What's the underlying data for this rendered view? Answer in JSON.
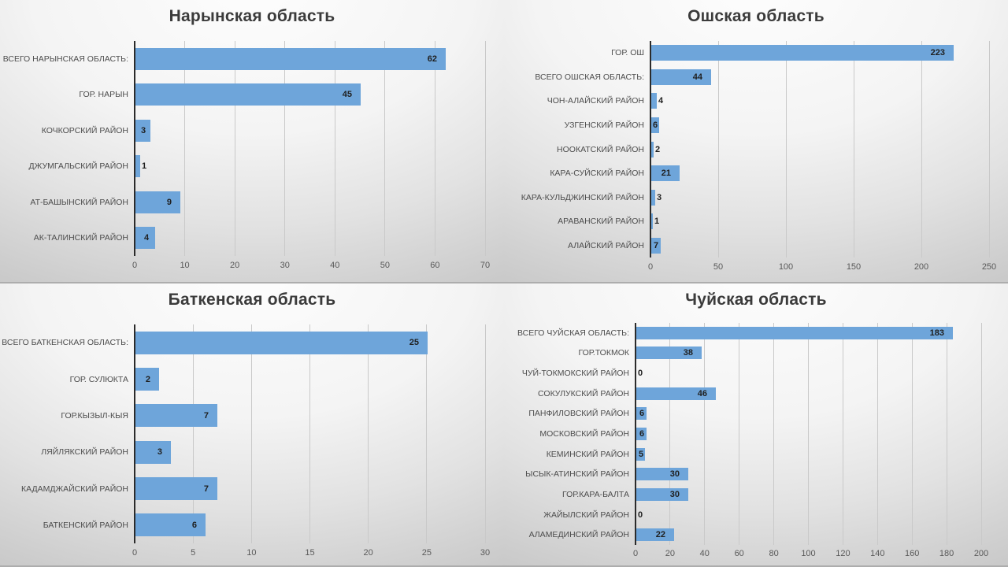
{
  "colors": {
    "bar": "#6EA5DA",
    "axis_line": "#2b2b2b",
    "gridline": "#c9c9c9",
    "title_text": "#3b3b3b",
    "category_text": "#4d4d4d",
    "tick_text": "#595959",
    "value_text": "#1f1f1f",
    "background_top": "#fdfdfd",
    "background_edge": "#bfbfbf"
  },
  "chart_data": [
    {
      "id": "naryn",
      "type": "bar",
      "orientation": "horizontal",
      "title": "Нарынская область",
      "categories": [
        "ВСЕГО НАРЫНСКАЯ ОБЛАСТЬ:",
        "ГОР. НАРЫН",
        "КОЧКОРСКИЙ РАЙОН",
        "ДЖУМГАЛЬСКИЙ РАЙОН",
        "АТ-БАШЫНСКИЙ РАЙОН",
        "АК-ТАЛИНСКИЙ РАЙОН"
      ],
      "values": [
        62,
        45,
        3,
        1,
        9,
        4
      ],
      "category_order": "top-to-bottom",
      "xlim": [
        0,
        70
      ],
      "xtick_step": 10,
      "xticks": [
        0,
        10,
        20,
        30,
        40,
        50,
        60,
        70
      ],
      "grid": true,
      "legend": "none",
      "data_labels": "inside-end"
    },
    {
      "id": "osh",
      "type": "bar",
      "orientation": "horizontal",
      "title": "Ошская область",
      "categories": [
        "ГОР. ОШ",
        "ВСЕГО ОШСКАЯ ОБЛАСТЬ:",
        "ЧОН-АЛАЙСКИЙ РАЙОН",
        "УЗГЕНСКИЙ РАЙОН",
        "НООКАТСКИЙ РАЙОН",
        "КАРА-СУЙСКИЙ РАЙОН",
        "КАРА-КУЛЬДЖИНСКИЙ РАЙОН",
        "АРАВАНСКИЙ РАЙОН",
        "АЛАЙСКИЙ РАЙОН"
      ],
      "values": [
        223,
        44,
        4,
        6,
        2,
        21,
        3,
        1,
        7
      ],
      "category_order": "top-to-bottom",
      "xlim": [
        0,
        250
      ],
      "xtick_step": 50,
      "xticks": [
        0,
        50,
        100,
        150,
        200,
        250
      ],
      "grid": true,
      "legend": "none",
      "data_labels": "inside-end"
    },
    {
      "id": "batken",
      "type": "bar",
      "orientation": "horizontal",
      "title": "Баткенская область",
      "categories": [
        "ВСЕГО БАТКЕНСКАЯ ОБЛАСТЬ:",
        "ГОР. СУЛЮКТА",
        "ГОР.КЫЗЫЛ-КЫЯ",
        "ЛЯЙЛЯКСКИЙ РАЙОН",
        "КАДАМДЖАЙСКИЙ РАЙОН",
        "БАТКЕНСКИЙ РАЙОН"
      ],
      "values": [
        25,
        2,
        7,
        3,
        7,
        6
      ],
      "category_order": "top-to-bottom",
      "xlim": [
        0,
        30
      ],
      "xtick_step": 5,
      "xticks": [
        0,
        5,
        10,
        15,
        20,
        25,
        30
      ],
      "grid": true,
      "legend": "none",
      "data_labels": "inside-end"
    },
    {
      "id": "chuy",
      "type": "bar",
      "orientation": "horizontal",
      "title": "Чуйская область",
      "categories": [
        "ВСЕГО ЧУЙСКАЯ ОБЛАСТЬ:",
        "ГОР.ТОКМОК",
        "ЧУЙ-ТОКМОКСКИЙ РАЙОН",
        "СОКУЛУКСКИЙ РАЙОН",
        "ПАНФИЛОВСКИЙ РАЙОН",
        "МОСКОВСКИЙ РАЙОН",
        "КЕМИНСКИЙ РАЙОН",
        "ЫСЫК-АТИНСКИЙ РАЙОН",
        "ГОР.КАРА-БАЛТА",
        "ЖАЙЫЛСКИЙ РАЙОН",
        "АЛАМЕДИНСКИЙ РАЙОН"
      ],
      "values": [
        183,
        38,
        0,
        46,
        6,
        6,
        5,
        30,
        30,
        0,
        22
      ],
      "category_order": "top-to-bottom",
      "xlim": [
        0,
        200
      ],
      "xtick_step": 20,
      "xticks": [
        0,
        20,
        40,
        60,
        80,
        100,
        120,
        140,
        160,
        180,
        200
      ],
      "grid": true,
      "legend": "none",
      "data_labels": "inside-end"
    }
  ]
}
